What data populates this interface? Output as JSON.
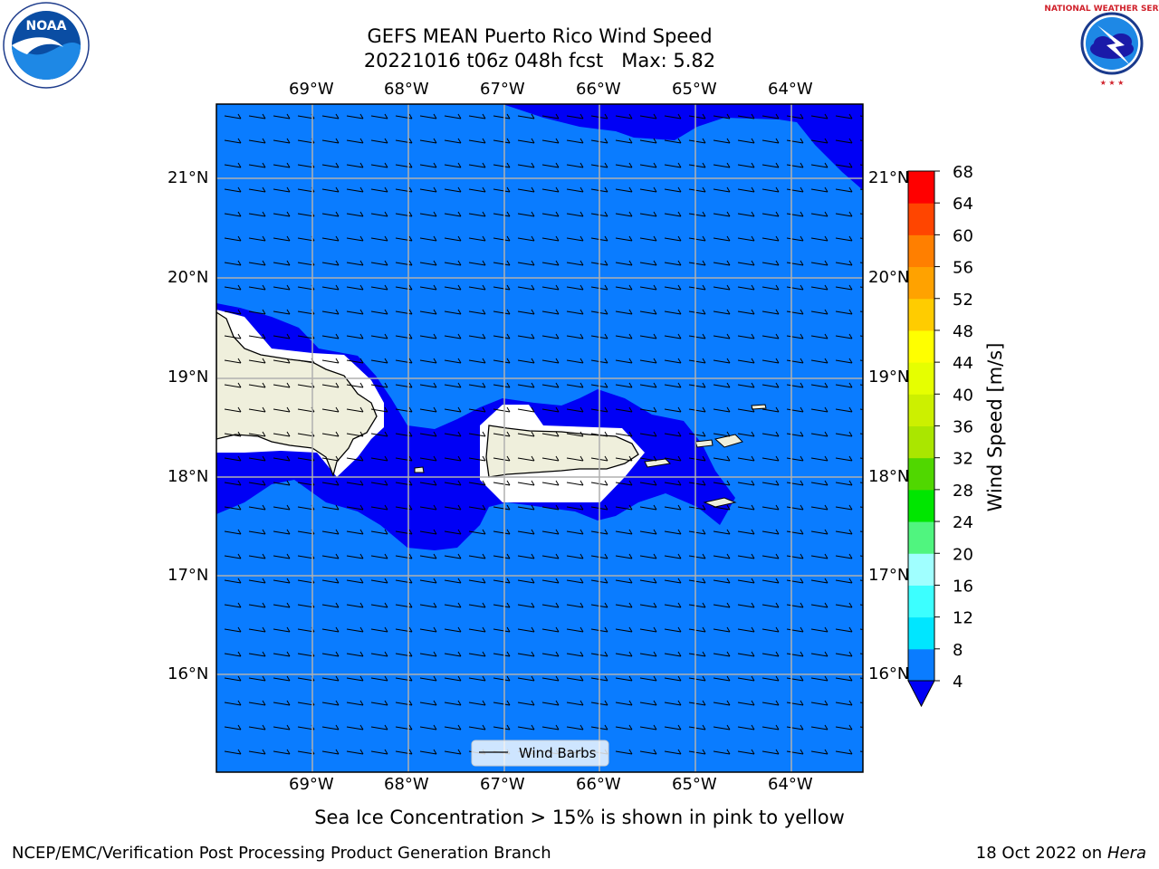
{
  "title": {
    "line1": "GEFS MEAN Puerto Rico Wind Speed",
    "line2": "20221016 t06z 048h fcst   Max: 5.82"
  },
  "map": {
    "lon_labels": [
      "69°W",
      "68°W",
      "67°W",
      "66°W",
      "65°W",
      "64°W"
    ],
    "lat_labels": [
      "21°N",
      "20°N",
      "19°N",
      "18°N",
      "17°N",
      "16°N"
    ],
    "legend_label": "Wind Barbs",
    "colors": {
      "ocean_4_8": "#0a7cff",
      "ocean_lt4": "#0000f5",
      "land": "#efefdc",
      "grid": "#b0b0b0"
    }
  },
  "colorbar": {
    "label": "Wind Speed [m/s]",
    "ticks": [
      "4",
      "8",
      "12",
      "16",
      "20",
      "24",
      "28",
      "32",
      "36",
      "40",
      "44",
      "48",
      "52",
      "56",
      "60",
      "64",
      "68"
    ],
    "under_color": "#0000f5",
    "colors": [
      "#0a7cff",
      "#00e6ff",
      "#3cffff",
      "#a0ffff",
      "#50f57f",
      "#00e600",
      "#50d700",
      "#aae600",
      "#ccf000",
      "#e6ff00",
      "#ffff00",
      "#ffcc00",
      "#ffa200",
      "#ff7f00",
      "#ff4500",
      "#ff0000"
    ]
  },
  "footer": {
    "note": "Sea Ice Concentration > 15% is shown in pink to yellow",
    "left": "NCEP/EMC/Verification Post Processing Product Generation Branch",
    "date": "18 Oct 2022 on",
    "machine": "Hera"
  },
  "logos": {
    "noaa": "NOAA",
    "nws": "NATIONAL WEATHER SERVICE"
  }
}
